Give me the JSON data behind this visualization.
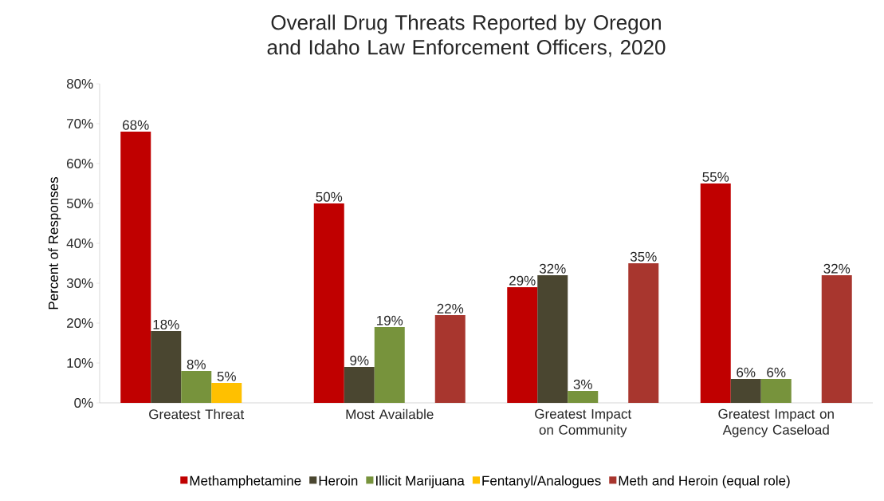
{
  "chart_data": {
    "type": "bar",
    "title": "Overall Drug Threats Reported by Oregon and Idaho Law Enforcement Officers, 2020",
    "ylabel": "Percent of Responses",
    "categories": [
      "Greatest Threat",
      "Most Available",
      "Greatest Impact on Community",
      "Greatest Impact on Agency Caseload"
    ],
    "series": [
      {
        "name": "Methamphetamine",
        "color": "#c00000",
        "values": [
          68,
          50,
          29,
          55
        ],
        "value_labels": [
          "68%",
          "50%",
          "29%",
          "55%"
        ]
      },
      {
        "name": "Heroin",
        "color": "#4a4630",
        "values": [
          18,
          9,
          32,
          6
        ],
        "value_labels": [
          "18%",
          "9%",
          "32%",
          "6%"
        ]
      },
      {
        "name": "Illicit Marijuana",
        "color": "#77933c",
        "values": [
          8,
          19,
          3,
          6
        ],
        "value_labels": [
          "8%",
          "19%",
          "3%",
          "6%"
        ]
      },
      {
        "name": "Fentanyl/Analogues",
        "color": "#ffc000",
        "values": [
          5,
          null,
          null,
          null
        ],
        "value_labels": [
          "5%",
          null,
          null,
          null
        ]
      },
      {
        "name": "Meth and Heroin (equal role)",
        "color": "#a8362e",
        "values": [
          null,
          22,
          35,
          32
        ],
        "value_labels": [
          null,
          "22%",
          "35%",
          "32%"
        ]
      }
    ],
    "ylim": [
      0,
      80
    ],
    "yticks": [
      {
        "value": 0,
        "label": "0%"
      },
      {
        "value": 10,
        "label": "10%"
      },
      {
        "value": 20,
        "label": "20%"
      },
      {
        "value": 30,
        "label": "30%"
      },
      {
        "value": 40,
        "label": "40%"
      },
      {
        "value": 50,
        "label": "50%"
      },
      {
        "value": 60,
        "label": "60%"
      },
      {
        "value": 70,
        "label": "70%"
      },
      {
        "value": 80,
        "label": "80%"
      }
    ],
    "legend": "bottom",
    "grid": false
  }
}
